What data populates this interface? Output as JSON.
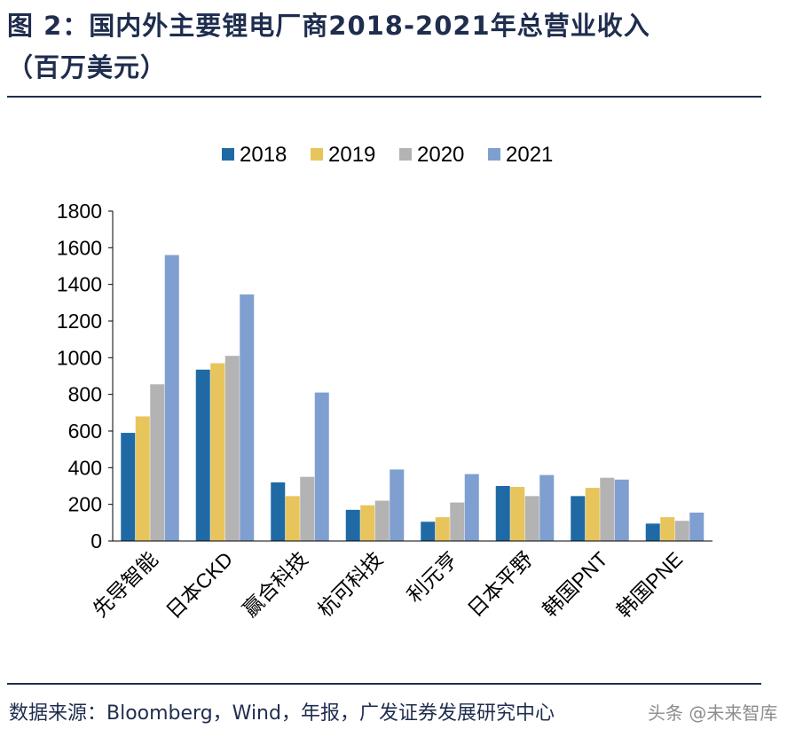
{
  "figure": {
    "title_line1": "图 2：国内外主要锂电厂商2018-2021年总营业收入",
    "title_line2": "（百万美元）",
    "source": "数据来源：Bloomberg，Wind，年报，广发证券发展研究中心",
    "watermark": "头条 @未来智库"
  },
  "chart_data": {
    "type": "bar",
    "categories": [
      "先导智能",
      "日本CKD",
      "赢合科技",
      "杭可科技",
      "利元亨",
      "日本平野",
      "韩国PNT",
      "韩国PNE"
    ],
    "series": [
      {
        "name": "2018",
        "color": "#1f6aa5",
        "values": [
          590,
          935,
          320,
          170,
          105,
          300,
          245,
          95
        ]
      },
      {
        "name": "2019",
        "color": "#e8c45c",
        "values": [
          680,
          970,
          245,
          195,
          130,
          295,
          290,
          130
        ]
      },
      {
        "name": "2020",
        "color": "#b3b3b3",
        "values": [
          855,
          1010,
          350,
          220,
          210,
          245,
          345,
          110
        ]
      },
      {
        "name": "2021",
        "color": "#7f9fd0",
        "values": [
          1560,
          1345,
          810,
          390,
          365,
          360,
          335,
          155
        ]
      }
    ],
    "ylim": [
      0,
      1800
    ],
    "yticks": [
      0,
      200,
      400,
      600,
      800,
      1000,
      1200,
      1400,
      1600,
      1800
    ],
    "legend": "top",
    "grid": false
  }
}
